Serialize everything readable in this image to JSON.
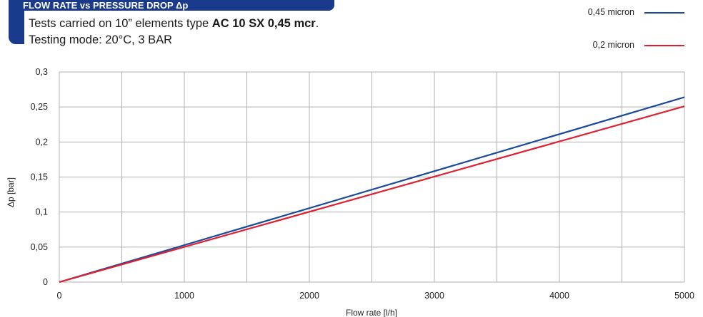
{
  "header": {
    "title": "FLOW RATE vs PRESSURE DROP Δp",
    "desc_prefix": "Tests carried on 10” elements type ",
    "desc_bold": "AC 10 SX 0,45 mcr",
    "desc_suffix": ".",
    "desc_line2": "Testing mode: 20°C, 3 BAR"
  },
  "colors": {
    "header_bg": "#1a3a8c",
    "series_045": "#1a4a9c",
    "series_02": "#e02030",
    "grid": "#b0b0b0"
  },
  "chart_data": {
    "type": "line",
    "xlabel": "Flow rate [l/h]",
    "ylabel": "Δp [bar]",
    "xlim": [
      0,
      5000
    ],
    "ylim": [
      0,
      0.3
    ],
    "x_ticks": [
      0,
      1000,
      2000,
      3000,
      4000,
      5000
    ],
    "x_tick_labels": [
      "0",
      "1000",
      "2000",
      "3000",
      "4000",
      "5000"
    ],
    "y_ticks": [
      0,
      0.05,
      0.1,
      0.15,
      0.2,
      0.25,
      0.3
    ],
    "y_tick_labels": [
      "0",
      "0,05",
      "0,1",
      "0,15",
      "0,2",
      "0,25",
      "0,3"
    ],
    "grid": "on",
    "x_grid_step": 500,
    "legend_position": "top-right",
    "series": [
      {
        "name": "0,45 micron",
        "color": "#1a4a9c",
        "x": [
          0,
          5000
        ],
        "y": [
          0,
          0.264
        ]
      },
      {
        "name": "0,2 micron",
        "color": "#e02030",
        "x": [
          0,
          5000
        ],
        "y": [
          0,
          0.251
        ]
      }
    ]
  }
}
